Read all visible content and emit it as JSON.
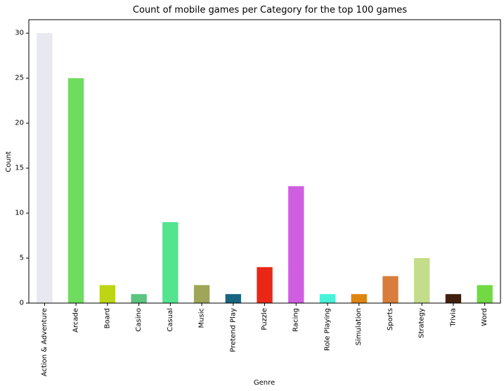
{
  "chart_data": {
    "type": "bar",
    "title": "Count of mobile games per Category for the top 100 games",
    "xlabel": "Genre",
    "ylabel": "Count",
    "ylim": [
      0,
      31.5
    ],
    "yticks": [
      0,
      5,
      10,
      15,
      20,
      25,
      30
    ],
    "grid": false,
    "categories": [
      "Action & Adventure",
      "Arcade",
      "Board",
      "Casino",
      "Casual",
      "Music",
      "Pretend Play",
      "Puzzle",
      "Racing",
      "Role Playing",
      "Simulation",
      "Sports",
      "Strategy",
      "Trivia",
      "Word"
    ],
    "values": [
      30,
      25,
      2,
      1,
      9,
      2,
      1,
      4,
      13,
      1,
      1,
      3,
      5,
      1,
      2
    ],
    "colors": [
      "#e8e8f0",
      "#6fdc5f",
      "#bcd616",
      "#5cc47e",
      "#52e48e",
      "#9fa65a",
      "#19657f",
      "#ea2717",
      "#d05ee0",
      "#48f2d8",
      "#e08410",
      "#d87d3c",
      "#c4dd8a",
      "#3f200c",
      "#72d944"
    ]
  }
}
